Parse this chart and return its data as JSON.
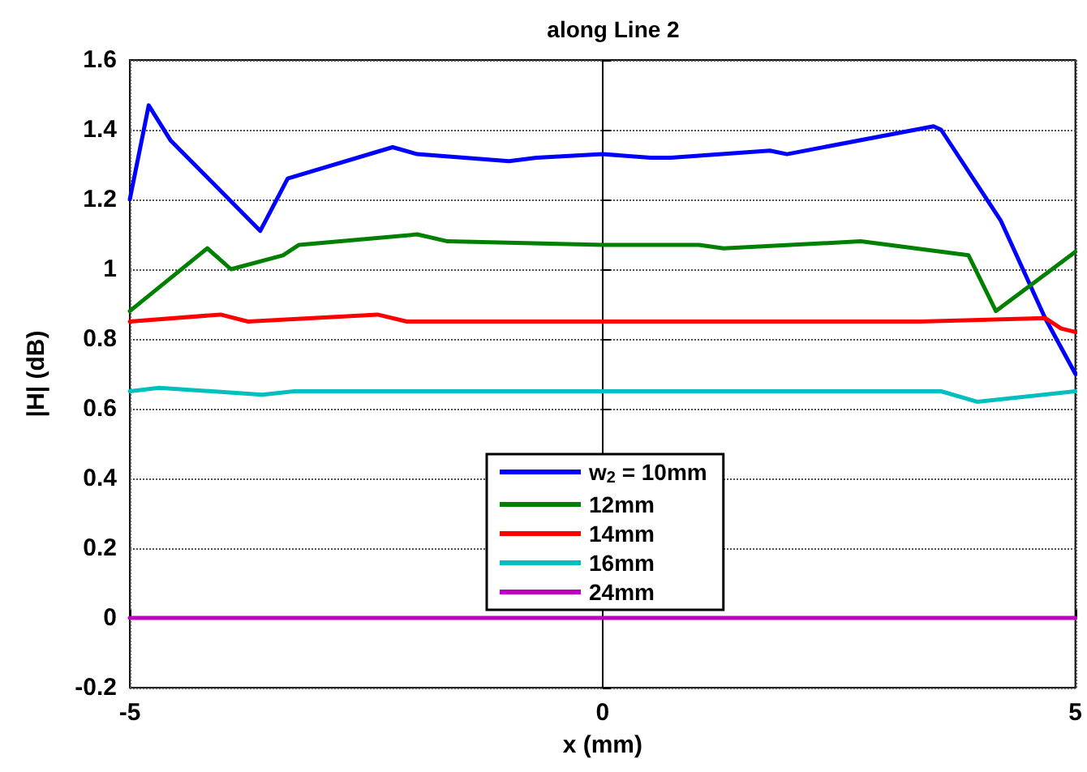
{
  "chart_data": {
    "type": "line",
    "title": "along Line 2",
    "xlabel": "x (mm)",
    "ylabel": "|H| (dB)",
    "xlim": [
      -5,
      5
    ],
    "xticks": [
      -5,
      0,
      5
    ],
    "ylim": [
      -0.2,
      1.6
    ],
    "yticks": [
      -0.2,
      0,
      0.2,
      0.4,
      0.6,
      0.8,
      1,
      1.2,
      1.4,
      1.6
    ],
    "grid": true,
    "legend": "bottom",
    "marker": "none",
    "line_style": "solid",
    "series": [
      {
        "name": "w$_{2}$ = 10mm",
        "color": "#0000ff",
        "x": [
          -5,
          -4.8,
          -4.57,
          -3.62,
          -3.33,
          -2.22,
          -1.96,
          -0.99,
          -0.7,
          0,
          0.51,
          0.72,
          1.77,
          1.95,
          3.5,
          3.58,
          4.21,
          4.68,
          5
        ],
        "values": [
          1.2,
          1.47,
          1.37,
          1.11,
          1.26,
          1.35,
          1.33,
          1.31,
          1.32,
          1.33,
          1.32,
          1.32,
          1.34,
          1.33,
          1.41,
          1.4,
          1.14,
          0.86,
          0.7
        ]
      },
      {
        "name": "12mm",
        "color": "#008000",
        "x": [
          -5,
          -4.18,
          -3.93,
          -3.38,
          -3.21,
          -1.96,
          -1.64,
          0,
          1.02,
          1.28,
          2.73,
          3.87,
          4.16,
          5
        ],
        "values": [
          0.88,
          1.06,
          1.0,
          1.04,
          1.07,
          1.1,
          1.08,
          1.07,
          1.07,
          1.06,
          1.08,
          1.04,
          0.88,
          1.05
        ]
      },
      {
        "name": "14mm",
        "color": "#ff0000",
        "x": [
          -5,
          -4.04,
          -3.75,
          -2.38,
          -2.07,
          0,
          1.37,
          3.36,
          4.68,
          4.85,
          5
        ],
        "values": [
          0.85,
          0.87,
          0.85,
          0.87,
          0.85,
          0.85,
          0.85,
          0.85,
          0.86,
          0.83,
          0.82
        ]
      },
      {
        "name": "16mm",
        "color": "#00bfbf",
        "x": [
          -5,
          -4.69,
          -3.6,
          -3.26,
          0,
          3.58,
          3.96,
          5
        ],
        "values": [
          0.65,
          0.66,
          0.64,
          0.65,
          0.65,
          0.65,
          0.62,
          0.65
        ]
      },
      {
        "name": "24mm",
        "color": "#bf00bf",
        "x": [
          -5,
          5
        ],
        "values": [
          0,
          0
        ]
      }
    ]
  }
}
